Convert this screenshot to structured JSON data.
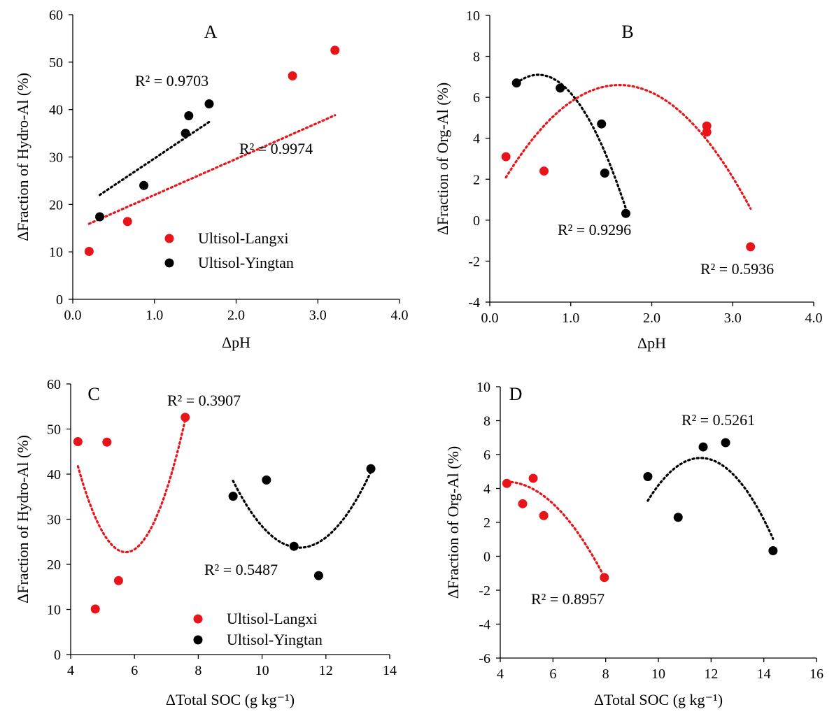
{
  "colors": {
    "langxi": "#e8141a",
    "yingtan": "#000000"
  },
  "legend_series": [
    "Ultisol-Langxi",
    "Ultisol-Yingtan"
  ],
  "chart_data": [
    {
      "panel": "A",
      "type": "scatter",
      "xlabel": "ΔpH",
      "ylabel": "ΔFraction of Hydro-Al (%)",
      "xlim": [
        0,
        4
      ],
      "ylim": [
        0,
        60
      ],
      "xticks": [
        "0.0",
        "1.0",
        "2.0",
        "3.0",
        "4.0"
      ],
      "yticks": [
        "0",
        "10",
        "20",
        "30",
        "40",
        "50",
        "60"
      ],
      "legend": true,
      "series": [
        {
          "name": "Ultisol-Langxi",
          "color_key": "langxi",
          "x": [
            0.2,
            0.67,
            2.69,
            3.21
          ],
          "y": [
            10.1,
            16.4,
            47.1,
            52.5
          ],
          "trend": {
            "kind": "linear",
            "from": 0.2,
            "to": 3.21,
            "coef": [
              7.6,
              14.4
            ]
          },
          "r2": "R² = 0.9974"
        },
        {
          "name": "Ultisol-Yingtan",
          "color_key": "yingtan",
          "x": [
            0.33,
            0.87,
            1.38,
            1.42,
            1.67
          ],
          "y": [
            17.4,
            24.0,
            35.0,
            38.7,
            41.2
          ],
          "trend": {
            "kind": "linear",
            "from": 0.33,
            "to": 1.67,
            "coef": [
              11.5,
              18.2
            ]
          },
          "r2": "R² = 0.9703"
        }
      ]
    },
    {
      "panel": "B",
      "type": "scatter",
      "xlabel": "ΔpH",
      "ylabel": "ΔFraction of Org-Al (%)",
      "xlim": [
        0,
        4
      ],
      "ylim": [
        -4,
        10
      ],
      "xticks": [
        "0.0",
        "1.0",
        "2.0",
        "3.0",
        "4.0"
      ],
      "yticks": [
        "-4",
        "-2",
        "0",
        "2",
        "4",
        "6",
        "8",
        "10"
      ],
      "legend": false,
      "series": [
        {
          "name": "Ultisol-Langxi",
          "color_key": "langxi",
          "x": [
            0.2,
            0.67,
            2.68,
            2.68,
            3.22
          ],
          "y": [
            3.1,
            2.4,
            4.6,
            4.3,
            -1.3
          ],
          "trend": {
            "kind": "quad",
            "from": 0.2,
            "to": 3.22,
            "vertex": [
              1.6,
              6.6
            ],
            "a": -2.3
          },
          "r2": "R² = 0.5936"
        },
        {
          "name": "Ultisol-Yingtan",
          "color_key": "yingtan",
          "x": [
            0.33,
            0.87,
            1.38,
            1.42,
            1.68
          ],
          "y": [
            6.7,
            6.45,
            4.7,
            2.3,
            0.33
          ],
          "trend": {
            "kind": "quad",
            "from": 0.33,
            "to": 1.68,
            "vertex": [
              0.6,
              7.1
            ],
            "a": -5.6
          },
          "r2": "R² = 0.9296"
        }
      ]
    },
    {
      "panel": "C",
      "type": "scatter",
      "xlabel": "ΔTotal SOC (g kg⁻¹)",
      "ylabel": "ΔFraction of Hydro-Al (%)",
      "xlim": [
        4,
        15
      ],
      "ylim": [
        0,
        60
      ],
      "xticks": [
        "4",
        "6",
        "8",
        "10",
        "12",
        "14"
      ],
      "yticks": [
        "0",
        "10",
        "20",
        "30",
        "40",
        "50",
        "60"
      ],
      "legend": true,
      "series": [
        {
          "name": "Ultisol-Langxi",
          "color_key": "langxi",
          "x": [
            4.25,
            4.85,
            5.25,
            5.65,
            7.95
          ],
          "y": [
            47.2,
            10.1,
            47.1,
            16.4,
            52.6
          ],
          "trend": {
            "kind": "quad",
            "from": 4.25,
            "to": 7.95,
            "vertex": [
              5.9,
              22.7
            ],
            "a": 7.0
          },
          "r2": "R² = 0.3907"
        },
        {
          "name": "Ultisol-Yingtan",
          "color_key": "yingtan",
          "x": [
            9.6,
            10.75,
            11.7,
            12.55,
            14.35
          ],
          "y": [
            35.1,
            38.7,
            24.0,
            17.5,
            41.2
          ],
          "trend": {
            "kind": "quad",
            "from": 9.6,
            "to": 14.35,
            "vertex": [
              11.9,
              23.7
            ],
            "a": 2.8
          },
          "r2": "R² = 0.5487"
        }
      ]
    },
    {
      "panel": "D",
      "type": "scatter",
      "xlabel": "ΔTotal SOC (g kg⁻¹)",
      "ylabel": "ΔFraction of Org-Al (%)",
      "xlim": [
        4,
        16
      ],
      "ylim": [
        -6,
        10
      ],
      "xticks": [
        "4",
        "6",
        "8",
        "10",
        "12",
        "14",
        "16"
      ],
      "yticks": [
        "-6",
        "-4",
        "-2",
        "0",
        "2",
        "4",
        "6",
        "8",
        "10"
      ],
      "legend": false,
      "series": [
        {
          "name": "Ultisol-Langxi",
          "color_key": "langxi",
          "x": [
            4.25,
            4.85,
            5.25,
            5.65,
            7.95
          ],
          "y": [
            4.3,
            3.1,
            4.6,
            2.4,
            -1.25
          ],
          "trend": {
            "kind": "quad",
            "from": 4.25,
            "to": 7.95,
            "vertex": [
              4.2,
              4.4
            ],
            "a": -0.4
          },
          "r2": "R² = 0.8957"
        },
        {
          "name": "Ultisol-Yingtan",
          "color_key": "yingtan",
          "x": [
            9.6,
            10.75,
            11.7,
            12.55,
            14.35
          ],
          "y": [
            4.7,
            2.3,
            6.45,
            6.7,
            0.33
          ],
          "trend": {
            "kind": "quad",
            "from": 9.6,
            "to": 14.35,
            "vertex": [
              11.6,
              5.8
            ],
            "a": -0.63
          },
          "r2": "R² = 0.5261"
        }
      ]
    }
  ]
}
